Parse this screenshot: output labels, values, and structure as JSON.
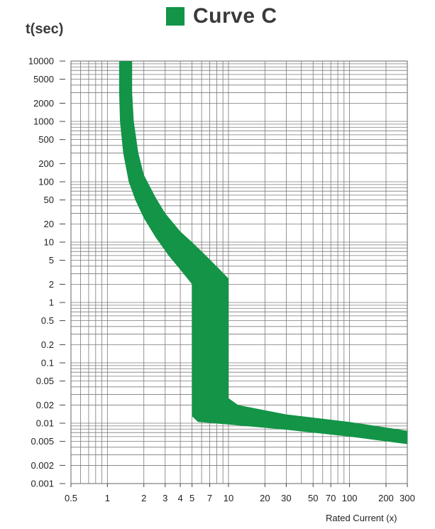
{
  "chart_data": {
    "type": "area",
    "title": "Curve C",
    "ylabel": "t(sec)",
    "xlabel": "Rated Current  (x)",
    "xscale": "log",
    "yscale": "log",
    "xlim": [
      0.5,
      300
    ],
    "ylim": [
      0.001,
      10000
    ],
    "grid": true,
    "legend_color": "#139447",
    "band_color": "#139447",
    "x_ticks": [
      "0.5",
      "1",
      "2",
      "3",
      "4",
      "5",
      "7",
      "10",
      "20",
      "30",
      "50",
      "70",
      "100",
      "200",
      "300"
    ],
    "x_tick_values": [
      0.5,
      1,
      2,
      3,
      4,
      5,
      7,
      10,
      20,
      30,
      50,
      70,
      100,
      200,
      300
    ],
    "y_ticks": [
      "10000",
      "5000",
      "2000",
      "1000",
      "500",
      "200",
      "100",
      "50",
      "20",
      "10",
      "5",
      "2",
      "1",
      "0.5",
      "0.2",
      "0.1",
      "0.05",
      "0.02",
      "0.01",
      "0.005",
      "0.002",
      "0.001"
    ],
    "y_tick_values": [
      10000,
      5000,
      2000,
      1000,
      500,
      200,
      100,
      50,
      20,
      10,
      5,
      2,
      1,
      0.5,
      0.2,
      0.1,
      0.05,
      0.02,
      0.01,
      0.005,
      0.002,
      0.001
    ],
    "series": [
      {
        "values": [
          {
            "x": 1.25,
            "y": 10000
          },
          {
            "x": 1.25,
            "y": 3000
          },
          {
            "x": 1.27,
            "y": 1000
          },
          {
            "x": 1.35,
            "y": 300
          },
          {
            "x": 1.5,
            "y": 100
          },
          {
            "x": 1.7,
            "y": 50
          },
          {
            "x": 2.0,
            "y": 25
          },
          {
            "x": 2.5,
            "y": 12
          },
          {
            "x": 3.2,
            "y": 6
          },
          {
            "x": 4.0,
            "y": 3.5
          },
          {
            "x": 5.0,
            "y": 2.0
          },
          {
            "x": 5.0,
            "y": 0.013
          },
          {
            "x": 5.6,
            "y": 0.0105
          },
          {
            "x": 10,
            "y": 0.0095
          },
          {
            "x": 30,
            "y": 0.0078
          },
          {
            "x": 100,
            "y": 0.006
          },
          {
            "x": 300,
            "y": 0.0045
          },
          {
            "x": 300,
            "y": 0.0075
          },
          {
            "x": 100,
            "y": 0.0105
          },
          {
            "x": 30,
            "y": 0.014
          },
          {
            "x": 12,
            "y": 0.02
          },
          {
            "x": 10,
            "y": 0.026
          },
          {
            "x": 10,
            "y": 2.5
          },
          {
            "x": 8.5,
            "y": 3.5
          },
          {
            "x": 6.5,
            "y": 6
          },
          {
            "x": 5.0,
            "y": 10
          },
          {
            "x": 4.0,
            "y": 15
          },
          {
            "x": 3.0,
            "y": 30
          },
          {
            "x": 2.5,
            "y": 55
          },
          {
            "x": 2.0,
            "y": 130
          },
          {
            "x": 1.8,
            "y": 300
          },
          {
            "x": 1.65,
            "y": 1000
          },
          {
            "x": 1.6,
            "y": 3000
          },
          {
            "x": 1.6,
            "y": 10000
          }
        ]
      }
    ]
  }
}
